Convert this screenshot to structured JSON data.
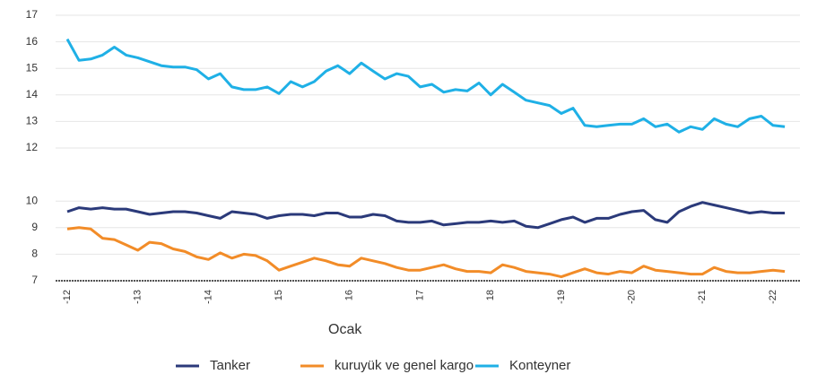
{
  "chart_data": {
    "type": "line",
    "x_label": "Ocak",
    "categories": [
      "-12",
      null,
      null,
      null,
      null,
      null,
      "-13",
      null,
      null,
      null,
      null,
      null,
      "-14",
      null,
      null,
      null,
      null,
      null,
      "15",
      null,
      null,
      null,
      null,
      null,
      "16",
      null,
      null,
      null,
      null,
      null,
      "17",
      null,
      null,
      null,
      null,
      null,
      "18",
      null,
      null,
      null,
      null,
      null,
      "-19",
      null,
      null,
      null,
      null,
      null,
      "-20",
      null,
      null,
      null,
      null,
      null,
      "-21",
      null,
      null,
      null,
      null,
      null,
      "-22",
      null
    ],
    "series": [
      {
        "name": "Tanker",
        "color": "#2b3a7a",
        "values": [
          9.6,
          9.75,
          9.7,
          9.75,
          9.7,
          9.7,
          9.6,
          9.5,
          9.55,
          9.6,
          9.6,
          9.55,
          9.45,
          9.35,
          9.6,
          9.55,
          9.5,
          9.35,
          9.45,
          9.5,
          9.5,
          9.45,
          9.55,
          9.55,
          9.4,
          9.4,
          9.5,
          9.45,
          9.25,
          9.2,
          9.2,
          9.25,
          9.1,
          9.15,
          9.2,
          9.2,
          9.25,
          9.2,
          9.25,
          9.05,
          9.0,
          9.15,
          9.3,
          9.4,
          9.2,
          9.35,
          9.35,
          9.5,
          9.6,
          9.65,
          9.3,
          9.2,
          9.6,
          9.8,
          9.95,
          9.85,
          9.75,
          9.65,
          9.55,
          9.6,
          9.55,
          9.55
        ]
      },
      {
        "name": "kuruyük ve genel kargo",
        "color": "#f28c28",
        "values": [
          8.95,
          9.0,
          8.95,
          8.6,
          8.55,
          8.35,
          8.15,
          8.45,
          8.4,
          8.2,
          8.1,
          7.9,
          7.8,
          8.05,
          7.85,
          8.0,
          7.95,
          7.75,
          7.4,
          7.55,
          7.7,
          7.85,
          7.75,
          7.6,
          7.55,
          7.85,
          7.75,
          7.65,
          7.5,
          7.4,
          7.4,
          7.5,
          7.6,
          7.45,
          7.35,
          7.35,
          7.3,
          7.6,
          7.5,
          7.35,
          7.3,
          7.25,
          7.15,
          7.3,
          7.45,
          7.3,
          7.25,
          7.35,
          7.3,
          7.55,
          7.4,
          7.35,
          7.3,
          7.25,
          7.25,
          7.5,
          7.35,
          7.3,
          7.3,
          7.35,
          7.4,
          7.35
        ]
      },
      {
        "name": "Konteyner",
        "color": "#1fb0e6",
        "values": [
          16.1,
          15.3,
          15.35,
          15.5,
          15.8,
          15.5,
          15.4,
          15.25,
          15.1,
          15.05,
          15.05,
          14.95,
          14.6,
          14.8,
          14.3,
          14.2,
          14.2,
          14.3,
          14.05,
          14.5,
          14.3,
          14.5,
          14.9,
          15.1,
          14.8,
          15.2,
          14.9,
          14.6,
          14.8,
          14.7,
          14.3,
          14.4,
          14.1,
          14.2,
          14.15,
          14.45,
          14.0,
          14.4,
          14.1,
          13.8,
          13.7,
          13.6,
          13.3,
          13.5,
          12.85,
          12.8,
          12.85,
          12.9,
          12.9,
          13.1,
          12.8,
          12.9,
          12.6,
          12.8,
          12.7,
          13.1,
          12.9,
          12.8,
          13.1,
          13.2,
          12.85,
          12.8
        ]
      }
    ],
    "ylim": [
      7,
      17
    ],
    "yticks": [
      7,
      8,
      9,
      10,
      12,
      13,
      14,
      15,
      16,
      17
    ],
    "grid": true,
    "legend": "bottom"
  }
}
